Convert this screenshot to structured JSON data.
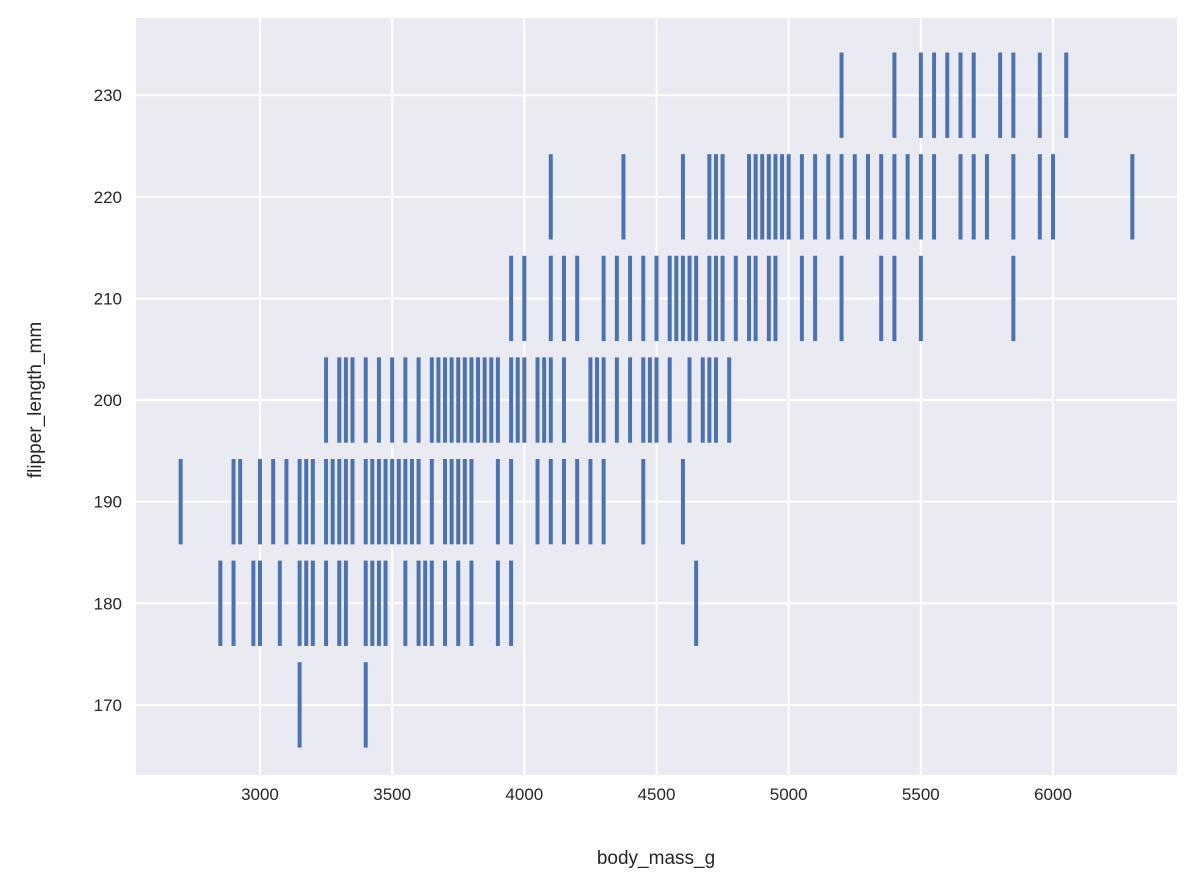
{
  "chart_data": {
    "type": "scatter",
    "mark": "vertical dash",
    "title": "",
    "xlabel": "body_mass_g",
    "ylabel": "flipper_length_mm",
    "xlim": [
      2531,
      6469
    ],
    "ylim": [
      163.1,
      237.6
    ],
    "xticks": [
      3000,
      3500,
      4000,
      4500,
      5000,
      5500,
      6000
    ],
    "yticks": [
      170,
      180,
      190,
      200,
      210,
      220,
      230
    ],
    "grid": true,
    "color": "#4c72b0",
    "background": "#eaeaf2",
    "rows": [
      {
        "y": 170,
        "x": [
          3150,
          3400
        ]
      },
      {
        "y": 180,
        "x": [
          2850,
          2900,
          2975,
          3000,
          3075,
          3150,
          3175,
          3200,
          3250,
          3300,
          3325,
          3400,
          3425,
          3450,
          3475,
          3550,
          3600,
          3625,
          3650,
          3700,
          3750,
          3800,
          3900,
          3950,
          4650
        ]
      },
      {
        "y": 190,
        "x": [
          2700,
          2900,
          2925,
          3000,
          3050,
          3100,
          3150,
          3175,
          3200,
          3250,
          3275,
          3300,
          3325,
          3350,
          3400,
          3425,
          3450,
          3475,
          3500,
          3525,
          3550,
          3575,
          3600,
          3650,
          3700,
          3725,
          3750,
          3775,
          3800,
          3900,
          3950,
          4050,
          4100,
          4150,
          4200,
          4250,
          4300,
          4450,
          4600
        ]
      },
      {
        "y": 200,
        "x": [
          3250,
          3300,
          3325,
          3350,
          3400,
          3450,
          3500,
          3550,
          3600,
          3650,
          3675,
          3700,
          3725,
          3750,
          3775,
          3800,
          3825,
          3850,
          3875,
          3900,
          3950,
          3975,
          4000,
          4050,
          4075,
          4100,
          4150,
          4250,
          4275,
          4300,
          4350,
          4400,
          4450,
          4475,
          4500,
          4550,
          4625,
          4675,
          4700,
          4725,
          4775
        ]
      },
      {
        "y": 210,
        "x": [
          3950,
          4000,
          4100,
          4150,
          4200,
          4300,
          4350,
          4400,
          4450,
          4500,
          4550,
          4575,
          4600,
          4625,
          4650,
          4700,
          4725,
          4750,
          4800,
          4850,
          4875,
          4925,
          4950,
          5050,
          5100,
          5200,
          5350,
          5400,
          5500,
          5850
        ]
      },
      {
        "y": 220,
        "x": [
          4100,
          4375,
          4600,
          4700,
          4725,
          4750,
          4850,
          4875,
          4900,
          4925,
          4950,
          4975,
          5000,
          5050,
          5100,
          5150,
          5200,
          5250,
          5300,
          5350,
          5400,
          5450,
          5500,
          5550,
          5650,
          5700,
          5750,
          5850,
          5950,
          6000,
          6300
        ]
      },
      {
        "y": 230,
        "x": [
          5200,
          5400,
          5500,
          5550,
          5600,
          5650,
          5700,
          5800,
          5850,
          5950,
          6050
        ]
      }
    ]
  }
}
